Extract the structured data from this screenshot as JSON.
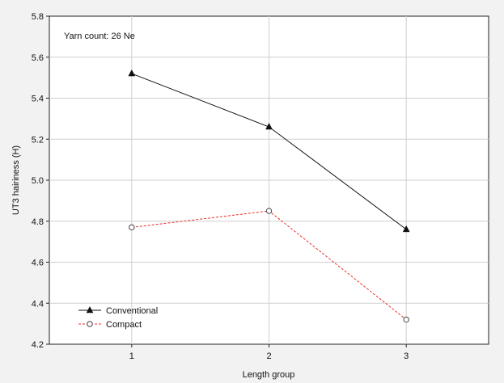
{
  "chart_data": {
    "type": "line",
    "title": "",
    "annotation": "Yarn count: 26 Ne",
    "xlabel": "Length group",
    "ylabel": "UT3 hairiness (H)",
    "x": [
      1,
      2,
      3
    ],
    "x_ticks": [
      "1",
      "2",
      "3"
    ],
    "xlim": [
      0.4,
      3.6
    ],
    "ylim": [
      4.2,
      5.8
    ],
    "y_ticks": [
      "4.2",
      "4.4",
      "4.6",
      "4.8",
      "5.0",
      "5.2",
      "5.4",
      "5.6",
      "5.8"
    ],
    "grid": true,
    "legend_position": "bottom-left",
    "series": [
      {
        "name": "Conventional",
        "values": [
          5.52,
          5.26,
          4.76
        ],
        "color": "#111111",
        "marker": "filled-triangle",
        "line_style": "solid"
      },
      {
        "name": "Compact",
        "values": [
          4.77,
          4.85,
          4.32
        ],
        "color": "#e8302a",
        "marker": "open-circle",
        "line_style": "dashed"
      }
    ]
  }
}
